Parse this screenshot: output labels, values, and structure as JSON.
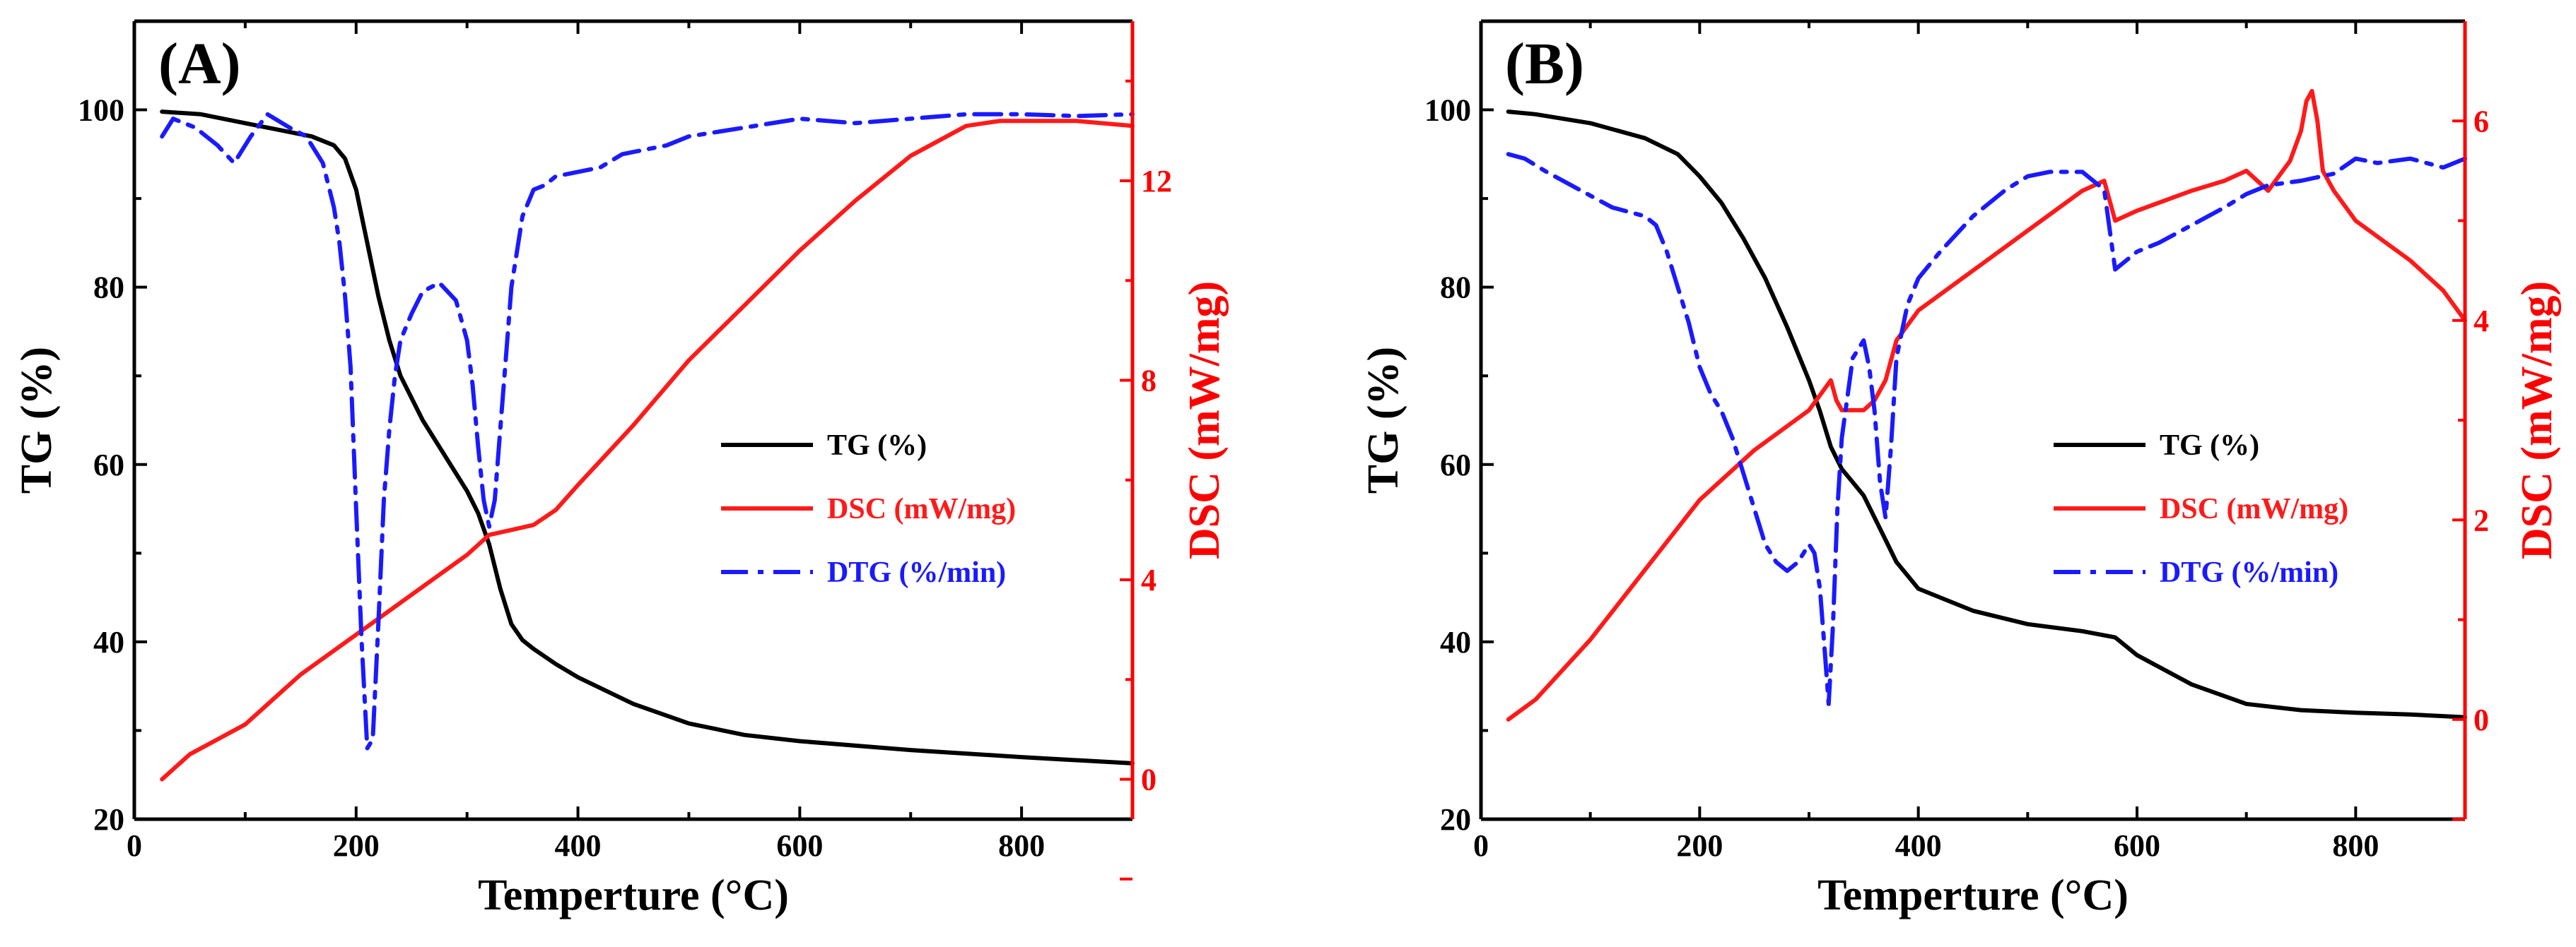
{
  "chart_data": [
    {
      "type": "line",
      "panel_label": "(A)",
      "xlabel": "Temperture (°C)",
      "ylabel": "TG (%)",
      "y2label": "DSC (mW/mg)",
      "xlim": [
        0,
        900
      ],
      "ylim": [
        20,
        110
      ],
      "y2lim": [
        -0.8,
        15.2
      ],
      "xticks": [
        0,
        200,
        400,
        600,
        800
      ],
      "yticks": [
        20,
        40,
        60,
        80,
        100
      ],
      "y2ticks": [
        0,
        4,
        8,
        12
      ],
      "legend_position": "center-right",
      "colors": {
        "tg": "#000000",
        "dsc": "#ff1a1a",
        "dtg": "#1a1aff",
        "axis": "#000000",
        "y2axis": "#ff0000"
      },
      "series": [
        {
          "name": "TG (%)",
          "axis": "left",
          "style": "solid",
          "color": "#000000",
          "x": [
            25,
            60,
            100,
            140,
            160,
            180,
            190,
            200,
            210,
            220,
            230,
            240,
            260,
            280,
            300,
            310,
            320,
            330,
            340,
            350,
            360,
            380,
            400,
            450,
            500,
            550,
            600,
            700,
            800,
            900
          ],
          "y": [
            99.8,
            99.5,
            98.5,
            97.5,
            97,
            96,
            94.5,
            91,
            85,
            79,
            74,
            70,
            65,
            61,
            57,
            54.5,
            51,
            46,
            42,
            40.2,
            39.2,
            37.5,
            36,
            33,
            30.8,
            29.5,
            28.8,
            27.8,
            27,
            26.3
          ]
        },
        {
          "name": "DSC (mW/mg)",
          "axis": "right",
          "style": "solid",
          "color": "#ff1a1a",
          "x": [
            25,
            50,
            75,
            100,
            150,
            200,
            250,
            300,
            320,
            340,
            360,
            380,
            400,
            450,
            500,
            550,
            600,
            650,
            700,
            750,
            780,
            800,
            850,
            900
          ],
          "y": [
            0,
            0.5,
            0.8,
            1.1,
            2.1,
            2.9,
            3.7,
            4.5,
            4.9,
            5.0,
            5.1,
            5.4,
            5.9,
            7.1,
            8.4,
            9.5,
            10.6,
            11.6,
            12.5,
            13.1,
            13.2,
            13.2,
            13.2,
            13.1
          ]
        },
        {
          "name": "DTG (%/min)",
          "axis": "left",
          "style": "dashdot",
          "color": "#1a1aff",
          "x": [
            25,
            35,
            55,
            75,
            90,
            105,
            120,
            140,
            155,
            170,
            180,
            185,
            190,
            195,
            200,
            205,
            210,
            215,
            220,
            225,
            230,
            235,
            240,
            250,
            260,
            275,
            290,
            300,
            305,
            310,
            315,
            320,
            325,
            330,
            335,
            340,
            350,
            360,
            370,
            380,
            400,
            420,
            440,
            460,
            480,
            500,
            550,
            600,
            650,
            700,
            750,
            780,
            800,
            850,
            900
          ],
          "y": [
            97,
            99,
            98,
            96,
            94,
            97,
            99.5,
            98,
            97,
            94,
            89,
            85,
            79,
            71,
            55,
            40,
            28,
            29,
            42,
            56,
            64,
            70,
            74,
            77,
            79.5,
            80.5,
            78.5,
            74,
            69,
            62,
            56,
            53,
            56,
            64,
            72,
            80,
            88,
            91,
            91.5,
            92.5,
            93,
            93.5,
            95,
            95.5,
            96,
            97,
            98,
            99,
            98.5,
            99,
            99.5,
            99.5,
            99.5,
            99.3,
            99.5
          ]
        }
      ]
    },
    {
      "type": "line",
      "panel_label": "(B)",
      "xlabel": "Temperture (°C)",
      "ylabel": "TG (%)",
      "y2label": "DSC (mW/mg)",
      "xlim": [
        0,
        900
      ],
      "ylim": [
        20,
        110
      ],
      "y2lim": [
        -1,
        7
      ],
      "xticks": [
        0,
        200,
        400,
        600,
        800
      ],
      "yticks": [
        20,
        40,
        60,
        80,
        100
      ],
      "y2ticks": [
        0,
        2,
        4,
        6
      ],
      "legend_position": "center-right",
      "colors": {
        "tg": "#000000",
        "dsc": "#ff1a1a",
        "dtg": "#1a1aff",
        "axis": "#000000",
        "y2axis": "#ff0000"
      },
      "series": [
        {
          "name": "TG (%)",
          "axis": "left",
          "style": "solid",
          "color": "#000000",
          "x": [
            25,
            50,
            100,
            150,
            180,
            200,
            220,
            240,
            260,
            280,
            300,
            310,
            320,
            330,
            340,
            350,
            360,
            370,
            380,
            390,
            400,
            450,
            500,
            550,
            580,
            600,
            650,
            700,
            750,
            800,
            850,
            900
          ],
          "y": [
            99.8,
            99.5,
            98.5,
            96.8,
            95,
            92.5,
            89.5,
            85.5,
            81,
            75.5,
            69.5,
            66,
            62,
            59.5,
            58,
            56.5,
            54,
            51.5,
            49,
            47.5,
            46,
            43.5,
            42,
            41.2,
            40.5,
            38.5,
            35.2,
            33,
            32.3,
            32,
            31.8,
            31.5
          ]
        },
        {
          "name": "DSC (mW/mg)",
          "axis": "right",
          "style": "solid",
          "color": "#ff1a1a",
          "x": [
            25,
            50,
            100,
            150,
            200,
            250,
            300,
            320,
            325,
            330,
            340,
            350,
            360,
            370,
            380,
            400,
            450,
            500,
            550,
            570,
            580,
            600,
            650,
            680,
            700,
            720,
            740,
            750,
            755,
            760,
            765,
            770,
            780,
            800,
            850,
            880,
            900
          ],
          "y": [
            0,
            0.2,
            0.8,
            1.5,
            2.2,
            2.7,
            3.1,
            3.4,
            3.2,
            3.1,
            3.1,
            3.1,
            3.2,
            3.4,
            3.8,
            4.1,
            4.5,
            4.9,
            5.3,
            5.4,
            5.0,
            5.1,
            5.3,
            5.4,
            5.5,
            5.3,
            5.6,
            5.9,
            6.2,
            6.3,
            6.0,
            5.5,
            5.3,
            5.0,
            4.6,
            4.3,
            4.0
          ]
        },
        {
          "name": "DTG (%/min)",
          "axis": "left",
          "style": "dashdot",
          "color": "#1a1aff",
          "x": [
            25,
            40,
            60,
            90,
            120,
            150,
            160,
            170,
            180,
            190,
            200,
            210,
            220,
            230,
            240,
            250,
            260,
            270,
            280,
            290,
            300,
            305,
            310,
            315,
            318,
            322,
            326,
            330,
            340,
            350,
            355,
            360,
            365,
            370,
            375,
            380,
            390,
            400,
            420,
            450,
            480,
            500,
            520,
            550,
            570,
            580,
            600,
            620,
            650,
            680,
            700,
            720,
            750,
            780,
            800,
            820,
            850,
            880,
            900
          ],
          "y": [
            95,
            94.5,
            93,
            91,
            89,
            88,
            87,
            84,
            80,
            76,
            71,
            68,
            66,
            63,
            59,
            55,
            51,
            49,
            48,
            49,
            51,
            50,
            46,
            38,
            33,
            42,
            55,
            63,
            72,
            74,
            71,
            66,
            58,
            54,
            62,
            72,
            78,
            81,
            84,
            88,
            91,
            92.5,
            93,
            93,
            91,
            82,
            84,
            85,
            87,
            89,
            90.5,
            91.5,
            92,
            92.8,
            94.5,
            94,
            94.5,
            93.5,
            94.5
          ]
        }
      ]
    }
  ]
}
